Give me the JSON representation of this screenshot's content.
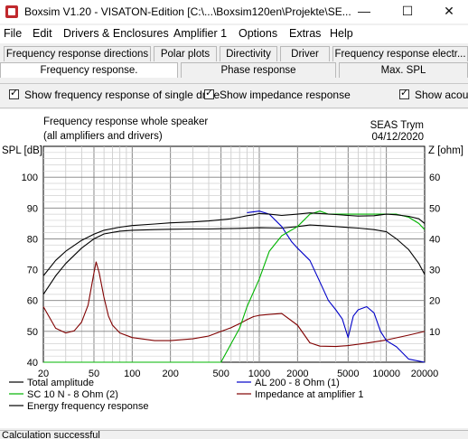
{
  "window": {
    "title": "Boxsim V1.20 - VISATON-Edition [C:\\...\\Boxsim120en\\Projekte\\SE...",
    "minimize_glyph": "—",
    "maximize_glyph": "☐",
    "close_glyph": "✕",
    "icon": "boxsim-app-icon"
  },
  "menu": {
    "items": [
      "File",
      "Edit",
      "Drivers & Enclosures",
      "Amplifier 1",
      "Options",
      "Extras",
      "Help"
    ]
  },
  "tabs": {
    "row1": [
      "Frequency response directions",
      "Polar plots",
      "Directivity",
      "Driver",
      "Frequency response electr..."
    ],
    "row2": [
      "Frequency response.",
      "Phase response",
      "Max. SPL"
    ],
    "active": "Frequency response."
  },
  "options": {
    "single_drive": "Show frequency response of single drive",
    "impedance": "Show impedance response",
    "acoustic": "Show acous"
  },
  "chart_data": {
    "type": "line",
    "title": "Frequency response whole speaker",
    "subtitle": "(all amplifiers and drivers)",
    "project": "SEAS Trym",
    "date": "04/12/2020",
    "ylabel_left": "SPL [dB]",
    "ylabel_right": "Z [ohm]",
    "x_scale": "log",
    "xlim": [
      20,
      20000
    ],
    "ylim_left": [
      40,
      110
    ],
    "ylim_right": [
      0,
      70
    ],
    "x_ticks": [
      "20",
      "50",
      "100",
      "200",
      "500",
      "1000",
      "2000",
      "5000",
      "10000",
      "20000"
    ],
    "x_tick_values": [
      20,
      50,
      100,
      200,
      500,
      1000,
      2000,
      5000,
      10000,
      20000
    ],
    "y_ticks_left": [
      "40",
      "50",
      "60",
      "70",
      "80",
      "90",
      "100"
    ],
    "y_ticks_right": [
      "10",
      "20",
      "30",
      "40",
      "50",
      "60"
    ],
    "grid": true,
    "legend_position": "bottom",
    "series": [
      {
        "name": "Total amplitude",
        "axis": "left",
        "color": "#000000",
        "x": [
          20,
          25,
          30,
          40,
          50,
          60,
          80,
          100,
          150,
          200,
          300,
          400,
          500,
          600,
          700,
          800,
          900,
          1000,
          1200,
          1500,
          2000,
          2500,
          3000,
          4000,
          5000,
          6000,
          8000,
          10000,
          12000,
          15000,
          18000,
          20000
        ],
        "y": [
          68,
          73,
          76,
          79.5,
          81.5,
          82.8,
          83.8,
          84.3,
          84.8,
          85.2,
          85.5,
          85.8,
          86.2,
          86.5,
          87,
          87.5,
          87.8,
          88.2,
          88,
          87.6,
          88,
          88.4,
          88.2,
          87.9,
          87.6,
          87.4,
          87.5,
          88,
          87.8,
          87.3,
          86.5,
          85
        ]
      },
      {
        "name": "AL 200 - 8 Ohm (1)",
        "axis": "left",
        "color": "#0000c8",
        "x": [
          800,
          1000,
          1200,
          1500,
          1800,
          2000,
          2500,
          3000,
          3500,
          4000,
          4500,
          5000,
          5500,
          6000,
          7000,
          8000,
          9000,
          10000,
          12000,
          15000,
          20000
        ],
        "y": [
          88.5,
          89,
          88,
          84,
          79,
          77,
          73,
          66,
          60,
          57,
          54,
          48,
          55,
          57,
          58,
          56,
          50,
          47,
          45,
          41,
          40
        ]
      },
      {
        "name": "SC 10 N - 8 Ohm (2)",
        "axis": "left",
        "color": "#00b400",
        "x": [
          20,
          500,
          600,
          700,
          800,
          1000,
          1200,
          1500,
          2000,
          2500,
          3000,
          3500,
          4000,
          5000,
          6000,
          8000,
          10000,
          12000,
          15000,
          18000,
          20000
        ],
        "y": [
          40,
          40,
          46,
          51,
          58,
          67,
          76,
          81,
          84,
          88,
          89,
          88,
          88,
          88,
          88,
          88,
          88,
          88,
          87,
          85,
          83
        ]
      },
      {
        "name": "Impedance at amplifier 1",
        "axis": "right",
        "color": "#800000",
        "x": [
          20,
          25,
          30,
          35,
          40,
          45,
          50,
          52,
          55,
          60,
          65,
          70,
          80,
          100,
          150,
          200,
          300,
          400,
          500,
          600,
          700,
          800,
          900,
          1000,
          1200,
          1500,
          2000,
          2500,
          3000,
          4000,
          5000,
          7000,
          10000,
          15000,
          20000
        ],
        "y": [
          18,
          11,
          9.5,
          10.2,
          13,
          18.5,
          29,
          32.5,
          29,
          21,
          15,
          12,
          9.5,
          8,
          7,
          7,
          7.6,
          8.5,
          10,
          11.2,
          12.5,
          13.8,
          14.8,
          15.2,
          15.5,
          15.8,
          12,
          6.3,
          5.2,
          5.1,
          5.4,
          6.2,
          7.2,
          8.8,
          10
        ]
      },
      {
        "name": "Energy frequency response",
        "axis": "left",
        "color": "#000000",
        "x": [
          20,
          25,
          30,
          40,
          50,
          60,
          80,
          100,
          150,
          200,
          300,
          400,
          500,
          700,
          1000,
          1500,
          2000,
          2500,
          3000,
          4000,
          5000,
          6000,
          8000,
          10000,
          12000,
          15000,
          18000,
          20000
        ],
        "y": [
          62,
          68,
          72,
          77,
          80,
          81.6,
          82.5,
          82.8,
          83,
          83.1,
          83.2,
          83.2,
          83.3,
          83.4,
          83.6,
          83.5,
          84,
          84.5,
          84.3,
          84,
          83.7,
          83.5,
          83,
          82.3,
          80,
          76.5,
          72,
          68.5
        ]
      }
    ],
    "legend": [
      "Total amplitude",
      "AL 200 - 8 Ohm (1)",
      "SC 10 N - 8 Ohm (2)",
      "Impedance at amplifier 1",
      "Energy frequency response"
    ]
  },
  "status": {
    "text": "Calculation successful"
  }
}
